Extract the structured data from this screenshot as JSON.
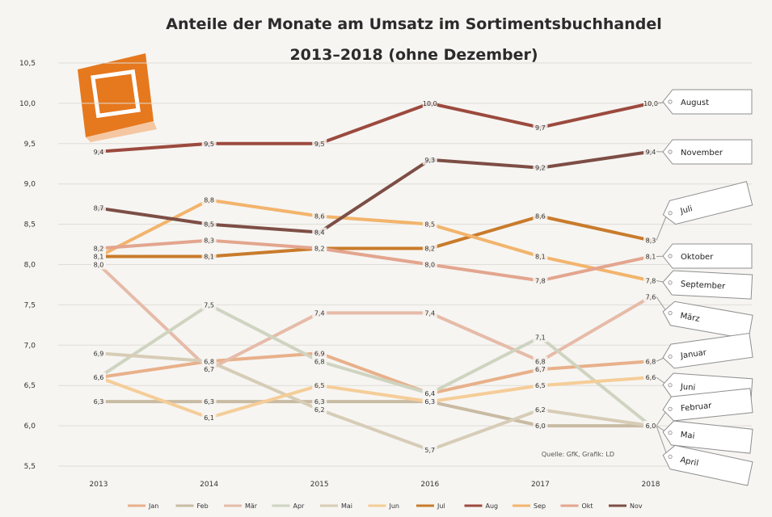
{
  "chart_data": {
    "type": "line",
    "title": "Anteile der Monate am Umsatz im Sortimentsbuchhandel",
    "subtitle": "2013–2018 (ohne Dezember)",
    "source": "Quelle: GfK, Grafik: LD",
    "x": [
      "2013",
      "2014",
      "2015",
      "2016",
      "2017",
      "2018"
    ],
    "ylim": [
      5.5,
      10.5
    ],
    "yticks": [
      "10,5",
      "10,0",
      "9,5",
      "9,0",
      "8,5",
      "8,0",
      "7,5",
      "7,0",
      "6,5",
      "6,0",
      "5,5"
    ],
    "grid": true,
    "legend_position": "bottom",
    "series": [
      {
        "name": "Jan",
        "color": "#e8b08a",
        "values": [
          6.6,
          6.8,
          6.9,
          6.4,
          6.7,
          6.8
        ],
        "labels": [
          "6,6",
          "6,8",
          "6,9",
          "6,4",
          "6,7",
          "6,8"
        ]
      },
      {
        "name": "Feb",
        "color": "#c9bba3",
        "values": [
          6.3,
          6.3,
          6.3,
          6.3,
          6.0,
          6.0
        ],
        "labels": [
          "6,3",
          "6,3",
          "6,3",
          "6,3",
          "6,0",
          "6,0"
        ]
      },
      {
        "name": "Mär",
        "color": "#e6bba8",
        "values": [
          8.0,
          6.7,
          7.4,
          7.4,
          6.8,
          7.6
        ],
        "labels": [
          "8,0",
          "6,7",
          "7,4",
          "7,4",
          "6,8",
          "7,6"
        ]
      },
      {
        "name": "Apr",
        "color": "#cfd4c0",
        "values": [
          6.6,
          7.5,
          6.8,
          6.4,
          7.1,
          6.0
        ],
        "labels": [
          "6,6",
          "7,5",
          "6,8",
          "6,4",
          "7,1",
          "6,0"
        ]
      },
      {
        "name": "Mai",
        "color": "#d7ccb6",
        "values": [
          6.9,
          6.8,
          6.2,
          5.7,
          6.2,
          6.0
        ],
        "labels": [
          "6,9",
          "6,8",
          "6,2",
          "5,7",
          "6,2",
          "6,0"
        ]
      },
      {
        "name": "Jun",
        "color": "#f5cd98",
        "values": [
          6.6,
          6.1,
          6.5,
          6.3,
          6.5,
          6.6
        ],
        "labels": [
          "6,6",
          "6,1",
          "6,5",
          "6,3",
          "6,5",
          "6,6"
        ]
      },
      {
        "name": "Jul",
        "color": "#c97b2b",
        "values": [
          8.1,
          8.1,
          8.2,
          8.2,
          8.6,
          8.3
        ],
        "labels": [
          "8,1",
          "8,1",
          "8,2",
          "8,2",
          "8,6",
          "8,3"
        ]
      },
      {
        "name": "Aug",
        "color": "#9c4a3e",
        "values": [
          9.4,
          9.5,
          9.5,
          10.0,
          9.7,
          10.0
        ],
        "labels": [
          "9,4",
          "9,5",
          "9,5",
          "10,0",
          "9,7",
          "10,0"
        ]
      },
      {
        "name": "Sep",
        "color": "#f2b46c",
        "values": [
          8.1,
          8.8,
          8.6,
          8.5,
          8.1,
          7.8
        ],
        "labels": [
          "8,1",
          "8,8",
          "8,6",
          "8,5",
          "8,1",
          "7,8"
        ]
      },
      {
        "name": "Okt",
        "color": "#e3a58e",
        "values": [
          8.2,
          8.3,
          8.2,
          8.0,
          7.8,
          8.1
        ],
        "labels": [
          "8,2",
          "8,3",
          "8,2",
          "8,0",
          "7,8",
          "8,1"
        ]
      },
      {
        "name": "Nov",
        "color": "#7d4e45",
        "values": [
          8.7,
          8.5,
          8.4,
          9.3,
          9.2,
          9.4
        ],
        "labels": [
          "8,7",
          "8,5",
          "8,4",
          "9,3",
          "9,2",
          "9,4"
        ]
      }
    ],
    "end_tags": [
      {
        "label": "August",
        "series": 7,
        "rot": 0
      },
      {
        "label": "November",
        "series": 10,
        "rot": 0
      },
      {
        "label": "Juli",
        "series": 6,
        "rot": -14
      },
      {
        "label": "Oktober",
        "series": 9,
        "rot": 0
      },
      {
        "label": "September",
        "series": 8,
        "rot": 3
      },
      {
        "label": "März",
        "series": 2,
        "rot": 10
      },
      {
        "label": "Januar",
        "series": 0,
        "rot": -8
      },
      {
        "label": "Juni",
        "series": 5,
        "rot": 4
      },
      {
        "label": "Februar",
        "series": 1,
        "rot": -6
      },
      {
        "label": "Mai",
        "series": 4,
        "rot": 6
      },
      {
        "label": "April",
        "series": 3,
        "rot": 12
      }
    ]
  }
}
